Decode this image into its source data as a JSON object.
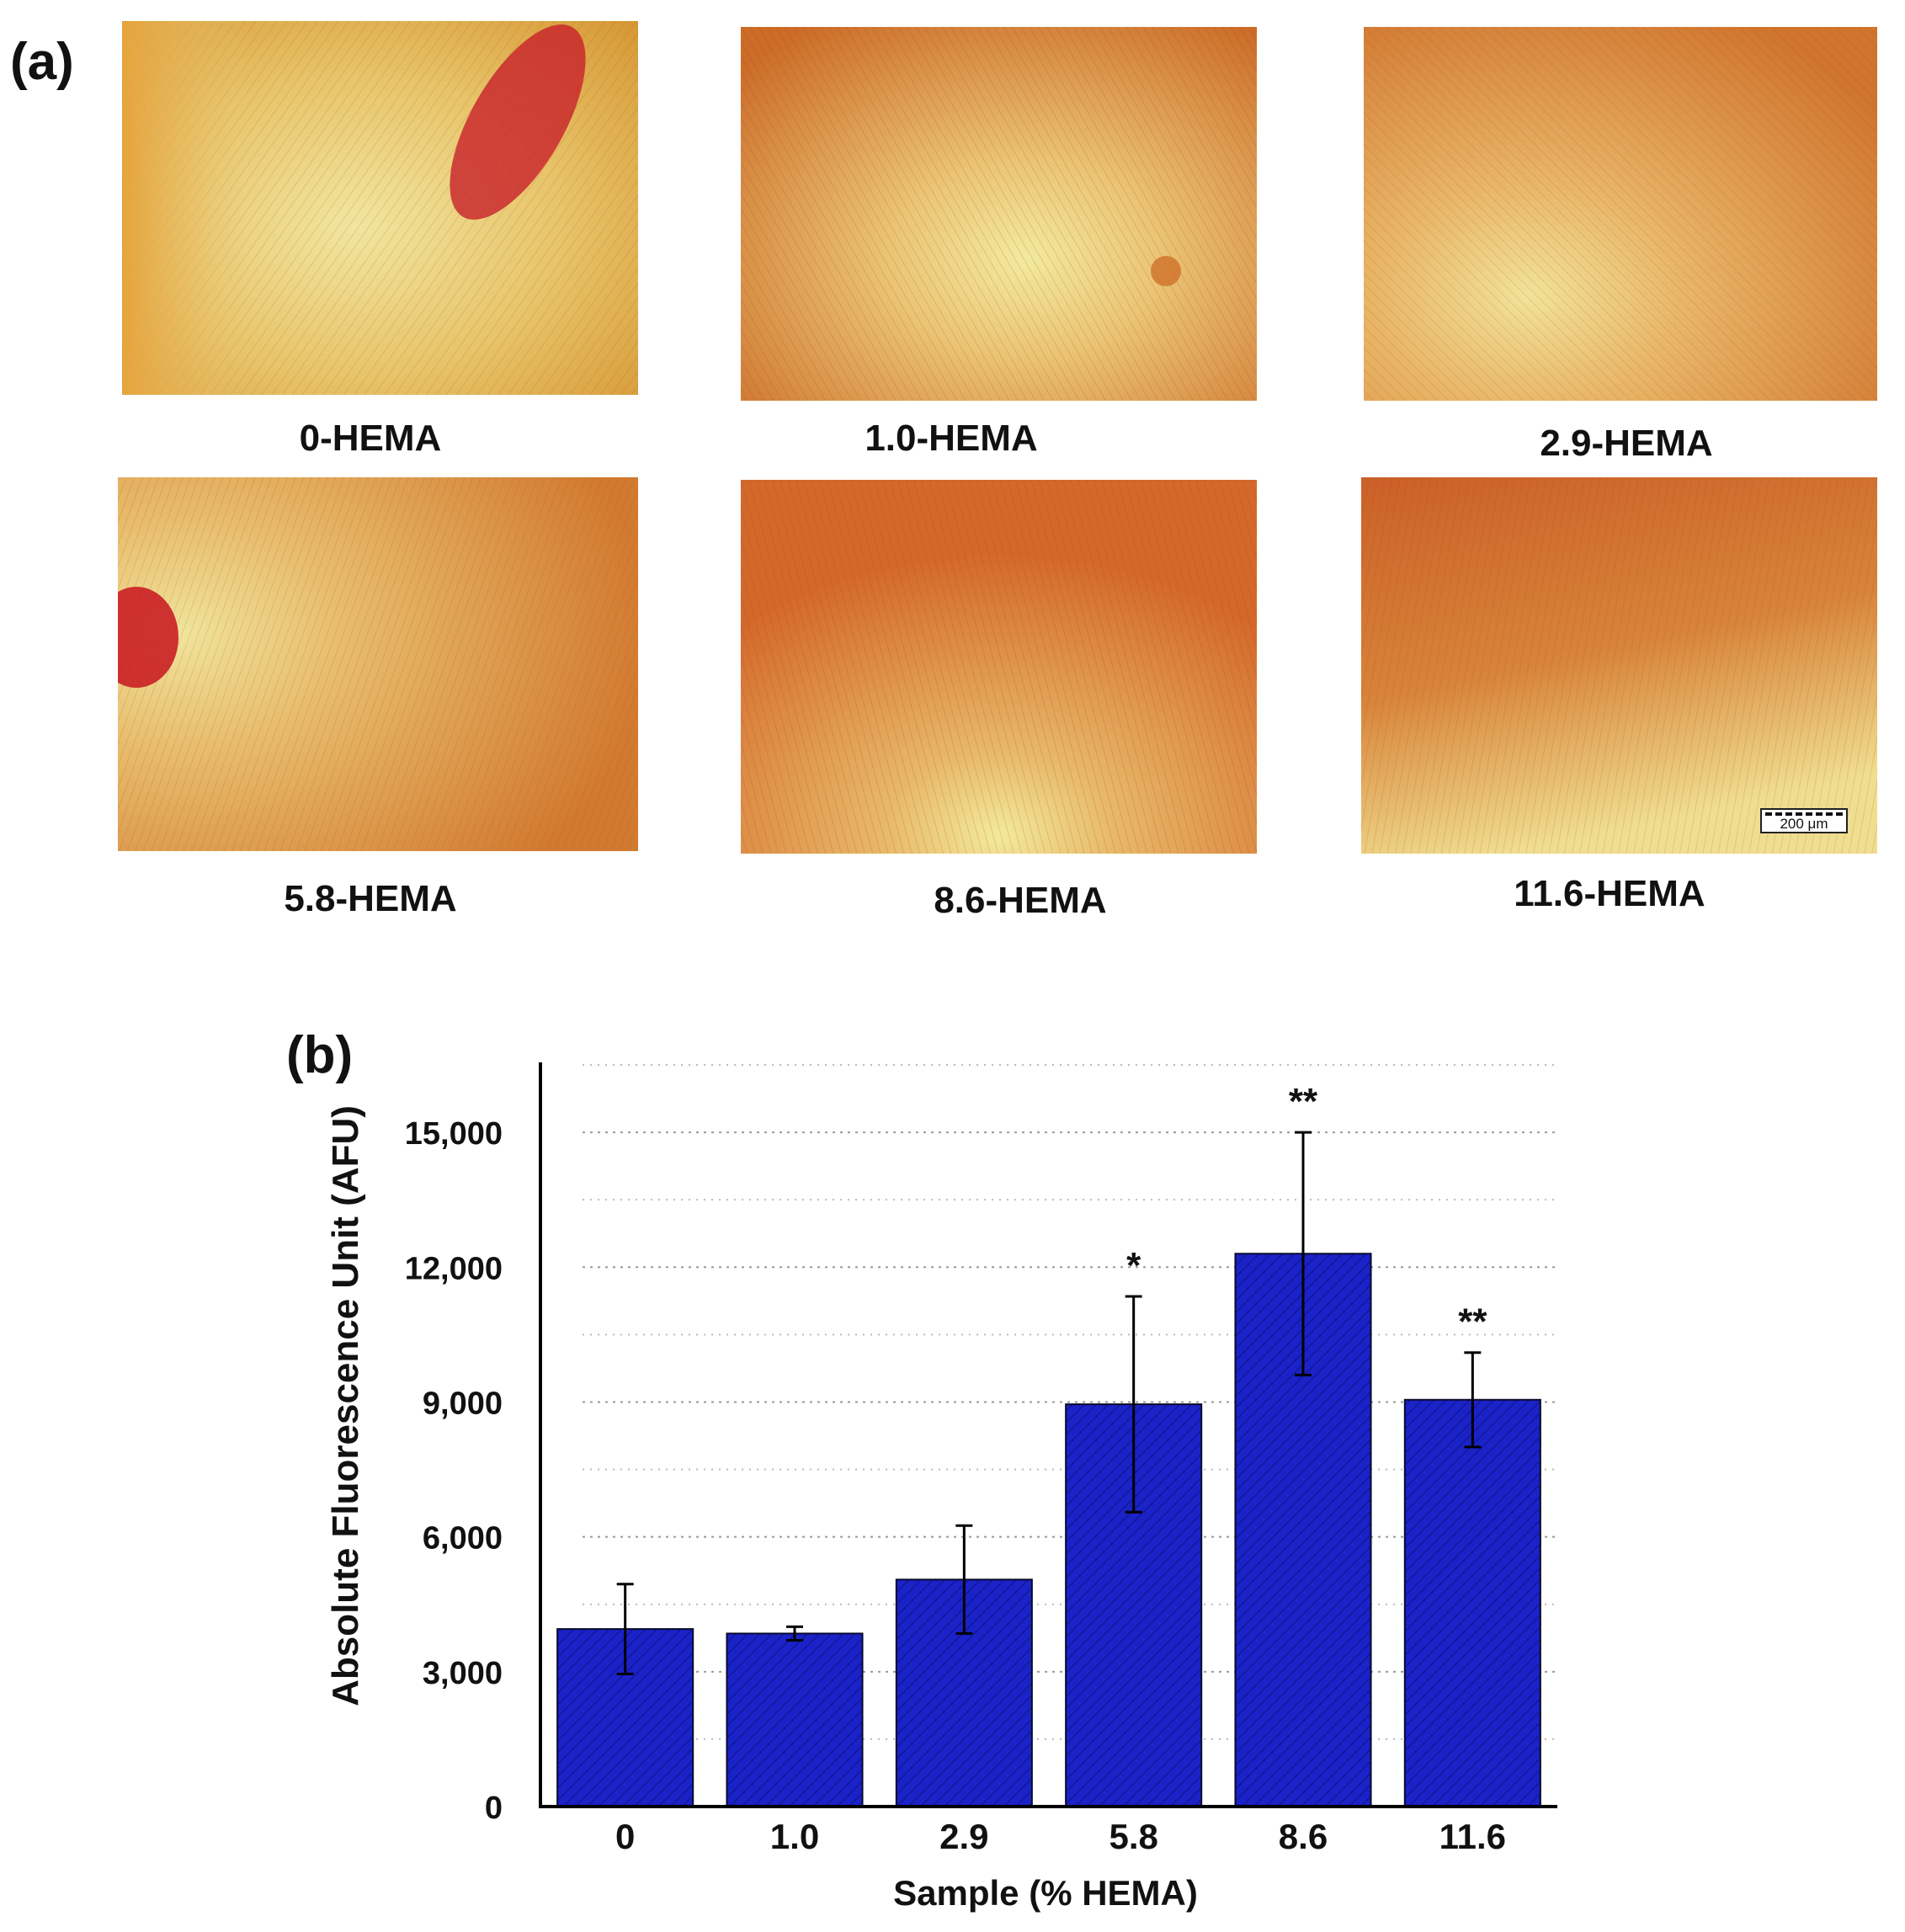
{
  "panel_a": {
    "label": "(a)",
    "images": [
      {
        "caption": "0-HEMA",
        "scale_bar": ""
      },
      {
        "caption": "1.0-HEMA",
        "scale_bar": ""
      },
      {
        "caption": "2.9-HEMA",
        "scale_bar": ""
      },
      {
        "caption": "5.8-HEMA",
        "scale_bar": ""
      },
      {
        "caption": "8.6-HEMA",
        "scale_bar": ""
      },
      {
        "caption": "11.6-HEMA",
        "scale_bar": "200 μm"
      }
    ]
  },
  "panel_b": {
    "label": "(b)"
  },
  "colors": {
    "bar": "#1a22c8",
    "bar_stroke": "#0a0a2a",
    "hatch": "#0b0f6e",
    "stain": "#d2581e",
    "highlight": "#f2e79a"
  },
  "chart_data": {
    "type": "bar",
    "title": "",
    "xlabel": "Sample (% HEMA)",
    "ylabel": "Absolute Fluorescence Unit (AFU)",
    "categories": [
      "0",
      "1.0",
      "2.9",
      "5.8",
      "8.6",
      "11.6"
    ],
    "series": [
      {
        "values": [
          3950,
          3850,
          5050,
          8950,
          12300,
          9050
        ],
        "error": [
          1000,
          150,
          1200,
          2400,
          2700,
          1050
        ],
        "annotations": [
          "",
          "",
          "",
          "*",
          "**",
          "**"
        ]
      }
    ],
    "yticks": [
      0,
      3000,
      6000,
      9000,
      12000,
      15000
    ],
    "ytick_labels": [
      "0",
      "3,000",
      "6,000",
      "9,000",
      "12,000",
      "15,000"
    ],
    "ylim": [
      0,
      16500
    ],
    "grid": "horizontal dotted",
    "legend": "none"
  }
}
